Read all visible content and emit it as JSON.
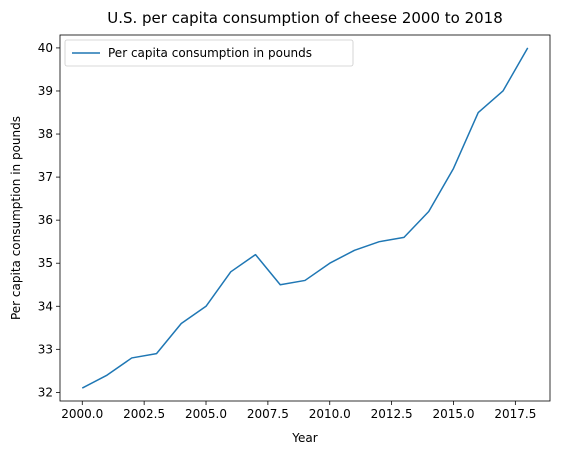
{
  "chart_data": {
    "type": "line",
    "title": "U.S. per capita consumption of cheese 2000 to 2018",
    "xlabel": "Year",
    "ylabel": "Per capita consumption in pounds",
    "x": [
      2000,
      2001,
      2002,
      2003,
      2004,
      2005,
      2006,
      2007,
      2008,
      2009,
      2010,
      2011,
      2012,
      2013,
      2014,
      2015,
      2016,
      2017,
      2018
    ],
    "series": [
      {
        "name": "Per capita consumption in pounds",
        "color": "#1f77b4",
        "values": [
          32.1,
          32.4,
          32.8,
          32.9,
          33.6,
          34.0,
          34.8,
          35.2,
          34.5,
          34.6,
          35.0,
          35.3,
          35.5,
          35.6,
          36.2,
          37.2,
          38.5,
          39.0,
          40.0
        ]
      }
    ],
    "xlim": [
      1999.1,
      2018.9
    ],
    "ylim": [
      31.8,
      40.3
    ],
    "xticks": [
      2000.0,
      2002.5,
      2005.0,
      2007.5,
      2010.0,
      2012.5,
      2015.0,
      2017.5
    ],
    "xtick_labels": [
      "2000.0",
      "2002.5",
      "2005.0",
      "2007.5",
      "2010.0",
      "2012.5",
      "2015.0",
      "2017.5"
    ],
    "yticks": [
      32,
      33,
      34,
      35,
      36,
      37,
      38,
      39,
      40
    ],
    "ytick_labels": [
      "32",
      "33",
      "34",
      "35",
      "36",
      "37",
      "38",
      "39",
      "40"
    ],
    "grid": false,
    "legend": "top-left"
  }
}
